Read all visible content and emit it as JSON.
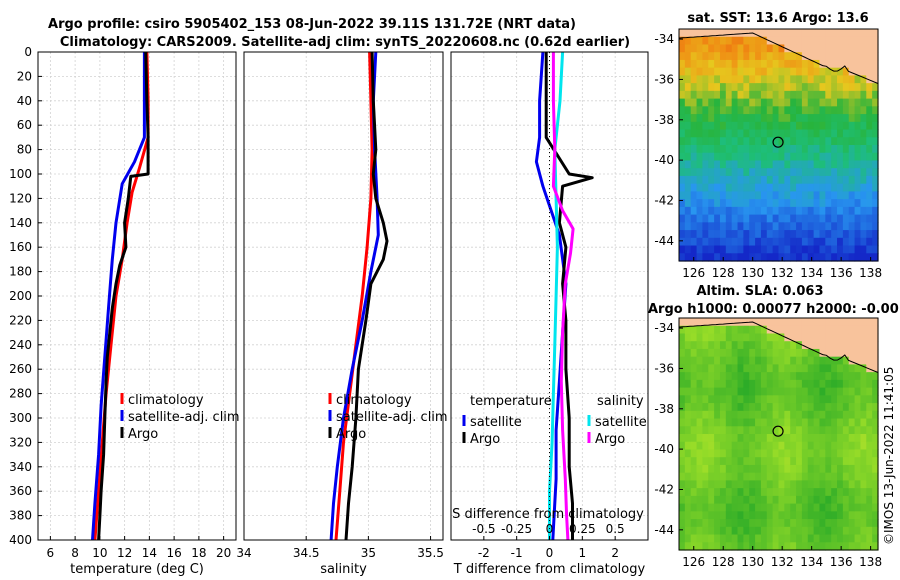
{
  "chart_data": [
    {
      "type": "line",
      "title": "Argo profile: csiro 5905402_153 08-Jun-2022 39.11S 131.72E (NRT data)",
      "subtitle": "Climatology: CARS2009. Satellite-adj clim: synTS_20220608.nc (0.62d earlier)",
      "xlabel": "temperature (deg C)",
      "ylabel": "",
      "xlim": [
        5,
        21
      ],
      "ylim": [
        400,
        0
      ],
      "xticks": [
        6,
        8,
        10,
        12,
        14,
        16,
        18,
        20
      ],
      "yticks": [
        0,
        20,
        40,
        60,
        80,
        100,
        120,
        140,
        160,
        180,
        200,
        220,
        240,
        260,
        280,
        300,
        320,
        340,
        360,
        380,
        400
      ],
      "legend": [
        "climatology",
        "satellite-adj. clim",
        "Argo"
      ],
      "series": [
        {
          "name": "climatology",
          "color": "#ff0000",
          "points": [
            [
              13.8,
              0
            ],
            [
              13.9,
              40
            ],
            [
              13.9,
              70
            ],
            [
              13.2,
              95
            ],
            [
              12.6,
              115
            ],
            [
              12.2,
              140
            ],
            [
              11.8,
              170
            ],
            [
              11.3,
              200
            ],
            [
              10.9,
              240
            ],
            [
              10.5,
              280
            ],
            [
              10.2,
              320
            ],
            [
              9.9,
              360
            ],
            [
              9.6,
              400
            ]
          ]
        },
        {
          "name": "satellite-adj. clim",
          "color": "#0000ee",
          "points": [
            [
              13.6,
              0
            ],
            [
              13.6,
              40
            ],
            [
              13.6,
              70
            ],
            [
              12.8,
              90
            ],
            [
              11.8,
              108
            ],
            [
              11.3,
              140
            ],
            [
              11.0,
              170
            ],
            [
              10.7,
              210
            ],
            [
              10.4,
              250
            ],
            [
              10.1,
              290
            ],
            [
              9.9,
              330
            ],
            [
              9.6,
              370
            ],
            [
              9.4,
              400
            ]
          ]
        },
        {
          "name": "Argo",
          "color": "#000000",
          "points": [
            [
              13.7,
              0
            ],
            [
              13.8,
              40
            ],
            [
              13.9,
              70
            ],
            [
              13.9,
              100
            ],
            [
              12.5,
              102
            ],
            [
              12.3,
              120
            ],
            [
              12.0,
              140
            ],
            [
              12.1,
              160
            ],
            [
              11.6,
              175
            ],
            [
              11.3,
              190
            ],
            [
              11.0,
              210
            ],
            [
              10.8,
              230
            ],
            [
              10.6,
              250
            ],
            [
              10.5,
              270
            ],
            [
              10.4,
              300
            ],
            [
              10.3,
              330
            ],
            [
              10.1,
              360
            ],
            [
              10.0,
              380
            ],
            [
              9.9,
              400
            ]
          ]
        }
      ]
    },
    {
      "type": "line",
      "xlabel": "salinity",
      "xlim": [
        34,
        35.6
      ],
      "ylim": [
        400,
        0
      ],
      "xticks": [
        34,
        34.5,
        35,
        35.5
      ],
      "legend": [
        "climatology",
        "satellite-adj. clim",
        "Argo"
      ],
      "series": [
        {
          "name": "climatology",
          "color": "#ff0000",
          "points": [
            [
              35.01,
              0
            ],
            [
              35.02,
              40
            ],
            [
              35.03,
              80
            ],
            [
              35.02,
              120
            ],
            [
              34.99,
              160
            ],
            [
              34.95,
              200
            ],
            [
              34.9,
              240
            ],
            [
              34.85,
              280
            ],
            [
              34.8,
              320
            ],
            [
              34.77,
              360
            ],
            [
              34.74,
              400
            ]
          ]
        },
        {
          "name": "satellite-adj. clim",
          "color": "#0000ee",
          "points": [
            [
              35.06,
              0
            ],
            [
              35.04,
              40
            ],
            [
              35.05,
              80
            ],
            [
              35.07,
              120
            ],
            [
              35.08,
              150
            ],
            [
              35.02,
              180
            ],
            [
              34.95,
              220
            ],
            [
              34.87,
              260
            ],
            [
              34.8,
              300
            ],
            [
              34.75,
              340
            ],
            [
              34.72,
              370
            ],
            [
              34.7,
              400
            ]
          ]
        },
        {
          "name": "Argo",
          "color": "#000000",
          "points": [
            [
              35.03,
              0
            ],
            [
              35.04,
              40
            ],
            [
              35.06,
              80
            ],
            [
              35.04,
              100
            ],
            [
              35.06,
              120
            ],
            [
              35.12,
              140
            ],
            [
              35.15,
              155
            ],
            [
              35.12,
              170
            ],
            [
              35.02,
              190
            ],
            [
              34.98,
              220
            ],
            [
              34.92,
              260
            ],
            [
              34.9,
              300
            ],
            [
              34.87,
              340
            ],
            [
              34.84,
              370
            ],
            [
              34.82,
              400
            ]
          ]
        }
      ]
    },
    {
      "type": "line",
      "xlabel": "T difference from climatology",
      "xlabel_top": "S difference from climatology",
      "xlim": [
        -3,
        3
      ],
      "xlim_top": [
        -0.75,
        0.75
      ],
      "ylim": [
        400,
        0
      ],
      "xticks": [
        -2,
        -1,
        0,
        1,
        2
      ],
      "xtick_labels_top": [
        "-0.5",
        "-0.25",
        "0",
        "0.25",
        "0.5"
      ],
      "legend_temperature": {
        "heading": "temperature",
        "items": [
          "satellite",
          "Argo"
        ]
      },
      "legend_salinity": {
        "heading": "salinity",
        "items": [
          "satellite",
          "Argo"
        ]
      },
      "series": [
        {
          "name": "temperature satellite",
          "color": "#0000ee",
          "points": [
            [
              -0.2,
              0
            ],
            [
              -0.3,
              40
            ],
            [
              -0.3,
              70
            ],
            [
              -0.4,
              90
            ],
            [
              -0.2,
              110
            ],
            [
              0.3,
              150
            ],
            [
              0.5,
              190
            ],
            [
              0.4,
              230
            ],
            [
              0.3,
              270
            ],
            [
              0.2,
              310
            ],
            [
              0.2,
              350
            ],
            [
              0.1,
              400
            ]
          ]
        },
        {
          "name": "temperature Argo",
          "color": "#000000",
          "points": [
            [
              -0.1,
              0
            ],
            [
              -0.1,
              40
            ],
            [
              -0.1,
              70
            ],
            [
              0.6,
              100
            ],
            [
              1.3,
              103
            ],
            [
              0.4,
              110
            ],
            [
              0.3,
              140
            ],
            [
              0.5,
              160
            ],
            [
              0.4,
              190
            ],
            [
              0.5,
              220
            ],
            [
              0.5,
              260
            ],
            [
              0.6,
              300
            ],
            [
              0.6,
              340
            ],
            [
              0.7,
              370
            ],
            [
              0.7,
              400
            ]
          ]
        },
        {
          "name": "salinity satellite",
          "color": "#00e5ee",
          "points": [
            [
              0.1,
              0
            ],
            [
              0.08,
              40
            ],
            [
              0.04,
              80
            ],
            [
              0.05,
              120
            ],
            [
              0.06,
              160
            ],
            [
              0.05,
              200
            ],
            [
              0.04,
              240
            ],
            [
              0.03,
              280
            ],
            [
              0.02,
              320
            ],
            [
              0.0,
              360
            ],
            [
              0.0,
              400
            ]
          ]
        },
        {
          "name": "salinity Argo",
          "color": "#ff00ff",
          "points": [
            [
              0.03,
              0
            ],
            [
              0.03,
              40
            ],
            [
              0.04,
              80
            ],
            [
              0.03,
              110
            ],
            [
              0.1,
              130
            ],
            [
              0.18,
              145
            ],
            [
              0.16,
              165
            ],
            [
              0.12,
              190
            ],
            [
              0.1,
              230
            ],
            [
              0.09,
              270
            ],
            [
              0.1,
              310
            ],
            [
              0.12,
              350
            ],
            [
              0.13,
              380
            ],
            [
              0.14,
              400
            ]
          ]
        }
      ]
    },
    {
      "type": "heatmap",
      "title": "sat. SST: 13.6 Argo: 13.6",
      "xlim": [
        125,
        138.5
      ],
      "ylim": [
        -45,
        -33.5
      ],
      "xticks": [
        126,
        128,
        130,
        132,
        134,
        136,
        138
      ],
      "yticks": [
        -34,
        -36,
        -38,
        -40,
        -42,
        -44
      ],
      "marker": {
        "lon": 131.72,
        "lat": -39.11
      }
    },
    {
      "type": "heatmap",
      "title": "Altim. SLA: 0.063",
      "subtitle": "Argo h1000: 0.00077 h2000: -0.00",
      "xlim": [
        125,
        138.5
      ],
      "ylim": [
        -45,
        -33.5
      ],
      "xticks": [
        126,
        128,
        130,
        132,
        134,
        136,
        138
      ],
      "yticks": [
        -34,
        -36,
        -38,
        -40,
        -42,
        -44
      ],
      "marker": {
        "lon": 131.72,
        "lat": -39.11
      }
    }
  ],
  "credit": "©IMOS 13-Jun-2022 11:41:05",
  "colors": {
    "clim": "#ff0000",
    "satadj": "#0000ee",
    "argo": "#000000",
    "cyan": "#00e5ee",
    "magenta": "#ff00ff",
    "land": "#f8c39c"
  }
}
